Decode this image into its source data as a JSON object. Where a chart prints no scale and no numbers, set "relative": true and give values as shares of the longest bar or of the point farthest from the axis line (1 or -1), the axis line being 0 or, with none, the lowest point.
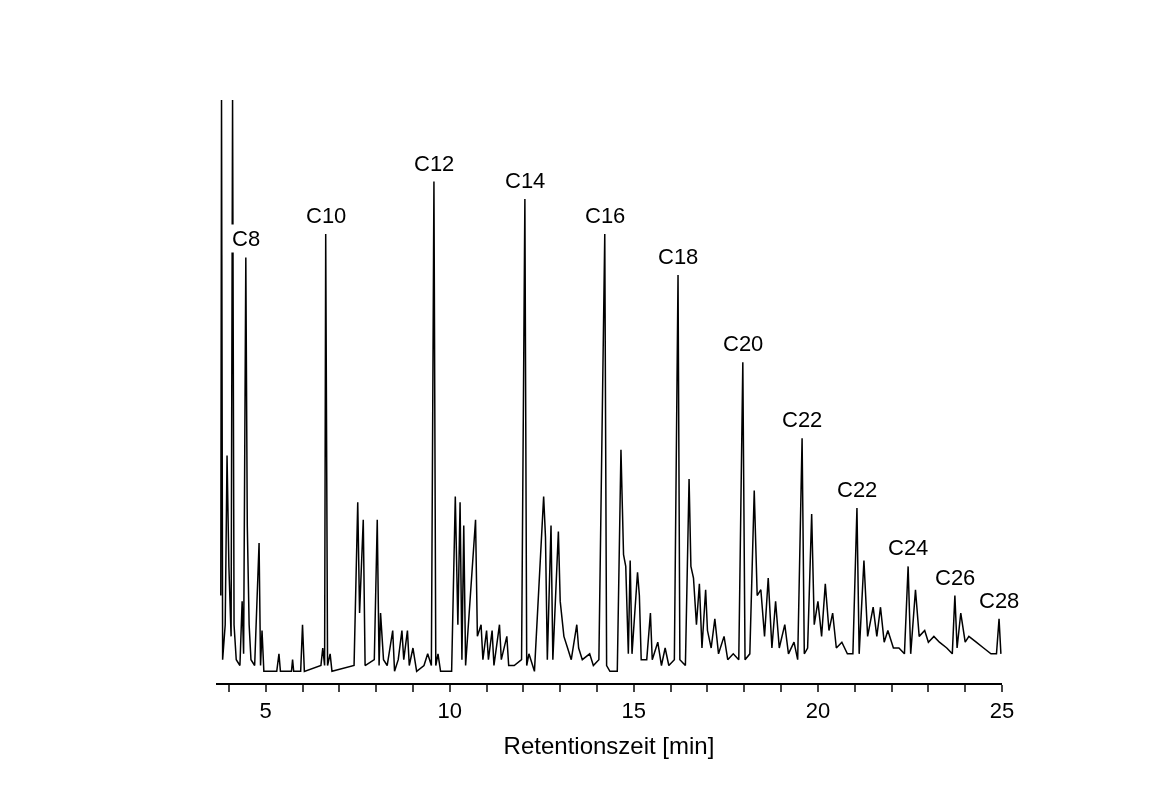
{
  "chart_data": {
    "type": "line",
    "relative": true,
    "xlabel": "Retentionszeit [min]",
    "color": "#000000",
    "marker": "none",
    "line_style": "solid",
    "legend": false,
    "tick_labels": "x",
    "xlim": [
      3.65,
      25
    ],
    "xticks": [
      {
        "value": 4,
        "label": null
      },
      5,
      {
        "value": 6,
        "label": null
      },
      {
        "value": 7,
        "label": null
      },
      {
        "value": 8,
        "label": null
      },
      {
        "value": 9,
        "label": null
      },
      10,
      {
        "value": 11,
        "label": null
      },
      {
        "value": 12,
        "label": null
      },
      {
        "value": 13,
        "label": null
      },
      {
        "value": 14,
        "label": null
      },
      15,
      {
        "value": 16,
        "label": null
      },
      {
        "value": 17,
        "label": null
      },
      {
        "value": 18,
        "label": null
      },
      {
        "value": 19,
        "label": null
      },
      20,
      {
        "value": 21,
        "label": null
      },
      {
        "value": 22,
        "label": null
      },
      {
        "value": 23,
        "label": null
      },
      {
        "value": 24,
        "label": null
      },
      25
    ],
    "x": [
      3.78,
      3.8,
      3.83,
      3.9,
      3.95,
      4.0,
      4.06,
      4.1,
      4.14,
      4.2,
      4.3,
      4.36,
      4.4,
      4.46,
      4.5,
      4.55,
      4.6,
      4.7,
      4.82,
      4.86,
      4.9,
      4.95,
      5.3,
      5.36,
      5.4,
      5.7,
      5.73,
      5.76,
      5.95,
      6.0,
      6.05,
      6.5,
      6.55,
      6.6,
      6.63,
      6.68,
      6.75,
      6.8,
      7.4,
      7.5,
      7.55,
      7.65,
      7.7,
      7.95,
      8.03,
      8.08,
      8.12,
      8.2,
      8.3,
      8.45,
      8.5,
      8.6,
      8.7,
      8.75,
      8.85,
      8.9,
      9.0,
      9.1,
      9.3,
      9.4,
      9.5,
      9.57,
      9.62,
      9.68,
      9.75,
      10.05,
      10.15,
      10.22,
      10.28,
      10.33,
      10.38,
      10.43,
      10.7,
      10.75,
      10.85,
      10.9,
      11.0,
      11.05,
      11.15,
      11.2,
      11.35,
      11.4,
      11.55,
      11.6,
      11.75,
      11.95,
      12.04,
      12.09,
      12.15,
      12.3,
      12.55,
      12.6,
      12.65,
      12.75,
      12.8,
      12.95,
      13.0,
      13.1,
      13.2,
      13.3,
      13.45,
      13.5,
      13.6,
      13.8,
      13.9,
      14.05,
      14.21,
      14.26,
      14.35,
      14.55,
      14.65,
      14.72,
      14.78,
      14.85,
      14.9,
      14.95,
      15.1,
      15.15,
      15.2,
      15.35,
      15.45,
      15.5,
      15.65,
      15.75,
      15.85,
      15.95,
      16.1,
      16.2,
      16.25,
      16.4,
      16.5,
      16.55,
      16.62,
      16.7,
      16.78,
      16.85,
      16.95,
      17.0,
      17.1,
      17.2,
      17.3,
      17.45,
      17.55,
      17.7,
      17.85,
      17.96,
      18.02,
      18.15,
      18.27,
      18.35,
      18.45,
      18.55,
      18.65,
      18.75,
      18.85,
      18.95,
      19.1,
      19.2,
      19.35,
      19.45,
      19.57,
      19.63,
      19.72,
      19.83,
      19.9,
      20.0,
      20.1,
      20.2,
      20.3,
      20.4,
      20.5,
      20.65,
      20.8,
      20.95,
      21.06,
      21.12,
      21.25,
      21.35,
      21.5,
      21.6,
      21.7,
      21.8,
      21.9,
      22.05,
      22.2,
      22.35,
      22.45,
      22.52,
      22.65,
      22.75,
      22.9,
      23.0,
      23.15,
      23.3,
      23.5,
      23.65,
      23.72,
      23.78,
      23.88,
      24.0,
      24.1,
      24.3,
      24.5,
      24.7,
      24.85,
      24.92,
      24.97
    ],
    "values": [
      0.15,
      1.0,
      0.04,
      0.1,
      0.39,
      0.2,
      0.08,
      1.0,
      0.1,
      0.04,
      0.03,
      0.14,
      0.05,
      0.73,
      0.27,
      0.1,
      0.04,
      0.03,
      0.24,
      0.03,
      0.09,
      0.02,
      0.02,
      0.05,
      0.02,
      0.02,
      0.04,
      0.02,
      0.02,
      0.1,
      0.02,
      0.03,
      0.06,
      0.03,
      0.77,
      0.03,
      0.05,
      0.02,
      0.03,
      0.31,
      0.12,
      0.28,
      0.03,
      0.04,
      0.28,
      0.03,
      0.12,
      0.04,
      0.03,
      0.09,
      0.02,
      0.04,
      0.09,
      0.04,
      0.09,
      0.03,
      0.06,
      0.02,
      0.03,
      0.05,
      0.03,
      0.86,
      0.03,
      0.05,
      0.02,
      0.02,
      0.32,
      0.1,
      0.31,
      0.04,
      0.27,
      0.03,
      0.28,
      0.08,
      0.1,
      0.04,
      0.09,
      0.04,
      0.09,
      0.03,
      0.1,
      0.04,
      0.08,
      0.03,
      0.03,
      0.04,
      0.83,
      0.03,
      0.05,
      0.02,
      0.32,
      0.25,
      0.04,
      0.27,
      0.04,
      0.26,
      0.14,
      0.08,
      0.06,
      0.04,
      0.1,
      0.06,
      0.04,
      0.05,
      0.03,
      0.04,
      0.77,
      0.03,
      0.02,
      0.02,
      0.4,
      0.22,
      0.2,
      0.05,
      0.21,
      0.05,
      0.19,
      0.15,
      0.04,
      0.04,
      0.12,
      0.04,
      0.07,
      0.03,
      0.06,
      0.03,
      0.04,
      0.7,
      0.04,
      0.03,
      0.35,
      0.2,
      0.18,
      0.1,
      0.17,
      0.06,
      0.16,
      0.09,
      0.06,
      0.11,
      0.05,
      0.08,
      0.04,
      0.05,
      0.04,
      0.55,
      0.04,
      0.05,
      0.33,
      0.15,
      0.16,
      0.08,
      0.18,
      0.06,
      0.14,
      0.06,
      0.1,
      0.05,
      0.07,
      0.04,
      0.42,
      0.05,
      0.06,
      0.29,
      0.1,
      0.14,
      0.08,
      0.17,
      0.09,
      0.12,
      0.06,
      0.07,
      0.05,
      0.05,
      0.3,
      0.05,
      0.21,
      0.08,
      0.13,
      0.08,
      0.13,
      0.07,
      0.09,
      0.06,
      0.06,
      0.05,
      0.2,
      0.05,
      0.16,
      0.08,
      0.09,
      0.07,
      0.08,
      0.07,
      0.06,
      0.05,
      0.15,
      0.06,
      0.12,
      0.07,
      0.08,
      0.07,
      0.06,
      0.05,
      0.05,
      0.11,
      0.05
    ],
    "annotations": [
      {
        "text": "C8",
        "x": 4.46,
        "y": 0.73
      },
      {
        "text": "C10",
        "x": 6.63,
        "y": 0.77
      },
      {
        "text": "C12",
        "x": 9.57,
        "y": 0.86
      },
      {
        "text": "C14",
        "x": 12.04,
        "y": 0.83
      },
      {
        "text": "C16",
        "x": 14.21,
        "y": 0.77
      },
      {
        "text": "C18",
        "x": 16.2,
        "y": 0.7
      },
      {
        "text": "C20",
        "x": 17.96,
        "y": 0.55
      },
      {
        "text": "C22",
        "x": 19.57,
        "y": 0.42
      },
      {
        "text": "C22",
        "x": 21.06,
        "y": 0.3
      },
      {
        "text": "C24",
        "x": 22.45,
        "y": 0.2
      },
      {
        "text": "C26",
        "x": 23.72,
        "y": 0.15
      },
      {
        "text": "C28",
        "x": 24.92,
        "y": 0.11
      }
    ]
  }
}
